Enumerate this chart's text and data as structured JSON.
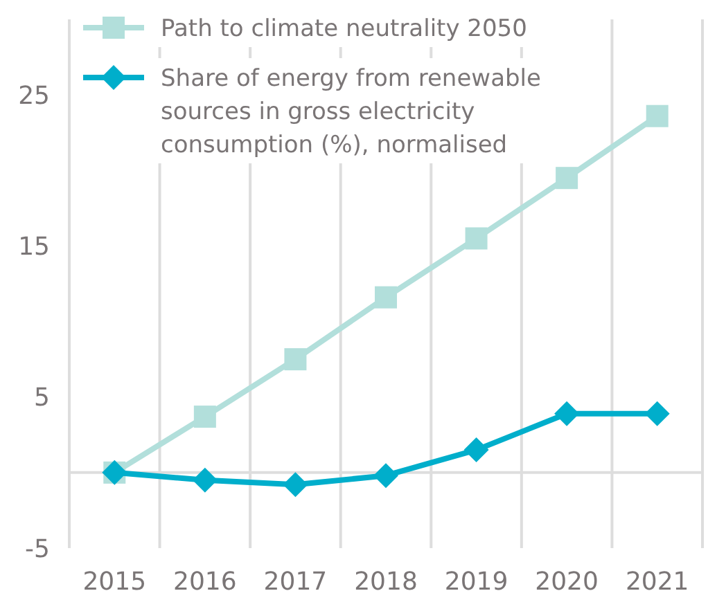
{
  "chart_data": {
    "type": "line",
    "categories": [
      "2015",
      "2016",
      "2017",
      "2018",
      "2019",
      "2020",
      "2021"
    ],
    "series": [
      {
        "name": "Path to climate neutrality 2050",
        "color": "#b2dfdb",
        "values": [
          0,
          3.7,
          7.5,
          11.6,
          15.5,
          19.5,
          23.6
        ],
        "marker": "square"
      },
      {
        "name": "Share of energy from renewable sources in gross electricity consumption (%), normalised",
        "color": "#00aecb",
        "values": [
          0,
          -0.5,
          -0.8,
          -0.2,
          1.5,
          3.9,
          3.9
        ],
        "marker": "diamond"
      }
    ],
    "ylim": [
      -5,
      30
    ],
    "yticks": [
      -5,
      5,
      15,
      25
    ],
    "grid": "x",
    "legend": "top left",
    "line_style": "solid"
  }
}
